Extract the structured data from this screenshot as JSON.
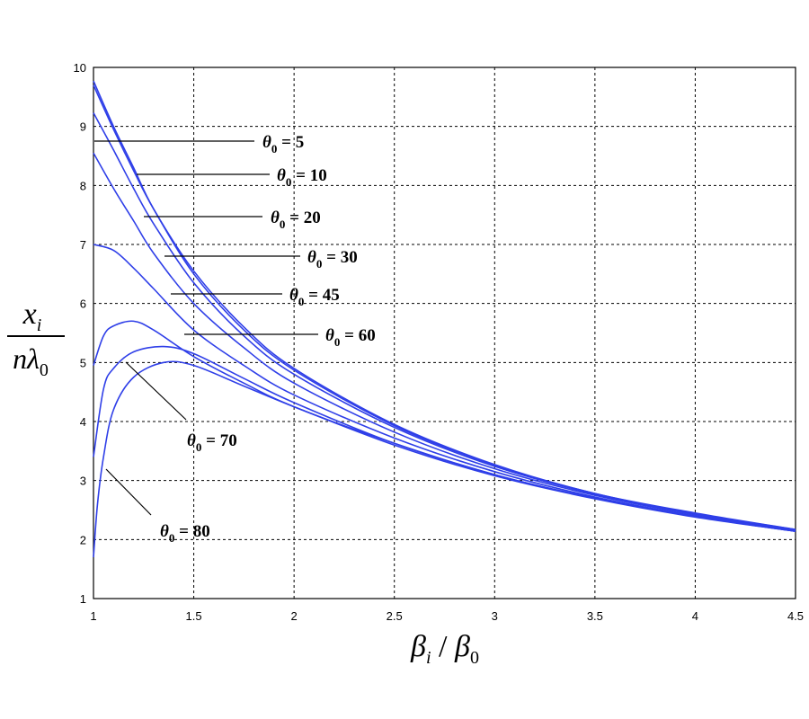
{
  "chart_data": {
    "type": "line",
    "title": "",
    "xlabel": "βi / β0",
    "ylabel": "xi / nλ0",
    "xlim": [
      1,
      4.5
    ],
    "ylim": [
      1,
      10
    ],
    "xticks": [
      "1",
      "1.5",
      "2",
      "2.5",
      "3",
      "3.5",
      "4",
      "4.5"
    ],
    "yticks": [
      "1",
      "2",
      "3",
      "4",
      "5",
      "6",
      "7",
      "8",
      "9",
      "10"
    ],
    "grid": true,
    "line_color": "#2f3fe8",
    "series": [
      {
        "name": "θ0 = 5",
        "x": [
          1.0,
          1.1,
          1.2,
          1.3,
          1.5,
          1.75,
          2.0,
          2.5,
          3.0,
          3.5,
          4.0,
          4.5
        ],
        "y": [
          9.77,
          9.0,
          8.3,
          7.6,
          6.55,
          5.6,
          4.9,
          3.95,
          3.27,
          2.78,
          2.45,
          2.17
        ]
      },
      {
        "name": "θ0 = 10",
        "x": [
          1.0,
          1.1,
          1.2,
          1.3,
          1.5,
          1.75,
          2.0,
          2.5,
          3.0,
          3.5,
          4.0,
          4.5
        ],
        "y": [
          9.7,
          8.95,
          8.25,
          7.6,
          6.5,
          5.55,
          4.87,
          3.93,
          3.26,
          2.78,
          2.44,
          2.17
        ]
      },
      {
        "name": "θ0 = 20",
        "x": [
          1.0,
          1.1,
          1.2,
          1.3,
          1.5,
          1.75,
          2.0,
          2.5,
          3.0,
          3.5,
          4.0,
          4.5
        ],
        "y": [
          9.23,
          8.6,
          7.95,
          7.35,
          6.35,
          5.45,
          4.8,
          3.9,
          3.24,
          2.77,
          2.43,
          2.16
        ]
      },
      {
        "name": "θ0 = 30",
        "x": [
          1.0,
          1.1,
          1.2,
          1.3,
          1.5,
          1.75,
          2.0,
          2.5,
          3.0,
          3.5,
          4.0,
          4.5
        ],
        "y": [
          8.55,
          7.95,
          7.4,
          6.85,
          6.0,
          5.25,
          4.65,
          3.82,
          3.2,
          2.75,
          2.42,
          2.16
        ]
      },
      {
        "name": "θ0 = 45",
        "x": [
          1.0,
          1.1,
          1.2,
          1.3,
          1.5,
          1.75,
          2.0,
          2.5,
          3.0,
          3.5,
          4.0,
          4.5
        ],
        "y": [
          7.0,
          6.9,
          6.6,
          6.25,
          5.55,
          4.95,
          4.45,
          3.72,
          3.15,
          2.72,
          2.4,
          2.15
        ]
      },
      {
        "name": "θ0 = 60",
        "x": [
          1.0,
          1.05,
          1.1,
          1.2,
          1.3,
          1.5,
          1.75,
          2.0,
          2.5,
          3.0,
          3.5,
          4.0,
          4.5
        ],
        "y": [
          4.95,
          5.45,
          5.62,
          5.7,
          5.55,
          5.1,
          4.65,
          4.25,
          3.63,
          3.1,
          2.7,
          2.39,
          2.14
        ]
      },
      {
        "name": "θ0 = 70",
        "x": [
          1.0,
          1.05,
          1.1,
          1.2,
          1.35,
          1.5,
          1.75,
          2.0,
          2.5,
          3.0,
          3.5,
          4.0,
          4.5
        ],
        "y": [
          3.4,
          4.55,
          4.9,
          5.18,
          5.27,
          5.15,
          4.73,
          4.32,
          3.63,
          3.1,
          2.7,
          2.39,
          2.14
        ]
      },
      {
        "name": "θ0 = 80",
        "x": [
          1.0,
          1.02,
          1.05,
          1.1,
          1.2,
          1.35,
          1.5,
          1.75,
          2.0,
          2.5,
          3.0,
          3.5,
          4.0,
          4.5
        ],
        "y": [
          1.7,
          2.6,
          3.4,
          4.2,
          4.75,
          5.0,
          4.95,
          4.6,
          4.25,
          3.6,
          3.08,
          2.69,
          2.38,
          2.14
        ]
      }
    ],
    "annotations": {
      "labels": [
        {
          "theta": "θ",
          "sub": "0",
          "rest": " = 5"
        },
        {
          "theta": "θ",
          "sub": "0",
          "rest": " = 10"
        },
        {
          "theta": "θ",
          "sub": "0",
          "rest": " = 20"
        },
        {
          "theta": "θ",
          "sub": "0",
          "rest": " = 30"
        },
        {
          "theta": "θ",
          "sub": "0",
          "rest": " = 45"
        },
        {
          "theta": "θ",
          "sub": "0",
          "rest": " = 60"
        },
        {
          "theta": "θ",
          "sub": "0",
          "rest": " = 70"
        },
        {
          "theta": "θ",
          "sub": "0",
          "rest": " = 80"
        }
      ]
    },
    "ylabel_parts": {
      "num": "x",
      "num_sub": "i",
      "den": "nλ",
      "den_sub": "0"
    },
    "xlabel_parts": {
      "a": "β",
      "a_sub": "i",
      "sep": " / ",
      "b": "β",
      "b_sub": "0"
    }
  }
}
